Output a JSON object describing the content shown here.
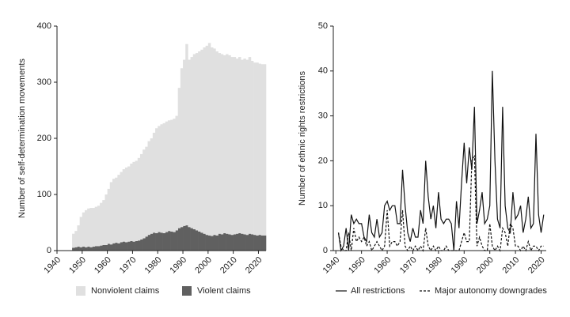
{
  "chart_data": [
    {
      "type": "bar",
      "stacked": true,
      "y_label": "Number of self-determination movements",
      "x": [
        1946,
        1947,
        1948,
        1949,
        1950,
        1951,
        1952,
        1953,
        1954,
        1955,
        1956,
        1957,
        1958,
        1959,
        1960,
        1961,
        1962,
        1963,
        1964,
        1965,
        1966,
        1967,
        1968,
        1969,
        1970,
        1971,
        1972,
        1973,
        1974,
        1975,
        1976,
        1977,
        1978,
        1979,
        1980,
        1981,
        1982,
        1983,
        1984,
        1985,
        1986,
        1987,
        1988,
        1989,
        1990,
        1991,
        1992,
        1993,
        1994,
        1995,
        1996,
        1997,
        1998,
        1999,
        2000,
        2001,
        2002,
        2003,
        2004,
        2005,
        2006,
        2007,
        2008,
        2009,
        2010,
        2011,
        2012,
        2013,
        2014,
        2015,
        2016,
        2017,
        2018,
        2019,
        2020,
        2021,
        2022
      ],
      "series": [
        {
          "name": "Nonviolent claims",
          "color": "#e0e0e0",
          "values": [
            25,
            29,
            38,
            54,
            61,
            66,
            68,
            70,
            69,
            70,
            72,
            76,
            80,
            90,
            98,
            111,
            115,
            116,
            122,
            125,
            129,
            133,
            134,
            138,
            142,
            143,
            147,
            152,
            158,
            160,
            167,
            170,
            178,
            187,
            189,
            193,
            196,
            197,
            197,
            199,
            202,
            204,
            250,
            283,
            296,
            323,
            298,
            305,
            312,
            316,
            321,
            326,
            332,
            337,
            343,
            336,
            332,
            328,
            322,
            321,
            317,
            320,
            319,
            317,
            316,
            312,
            314,
            310,
            313,
            312,
            315,
            309,
            307,
            308,
            305,
            305,
            305
          ]
        },
        {
          "name": "Violent claims",
          "color": "#606060",
          "values": [
            5,
            6,
            7,
            6,
            7,
            6,
            7,
            6,
            7,
            8,
            8,
            9,
            10,
            10,
            12,
            11,
            13,
            14,
            13,
            15,
            16,
            15,
            16,
            17,
            16,
            17,
            18,
            20,
            22,
            25,
            28,
            30,
            32,
            31,
            33,
            32,
            31,
            33,
            35,
            34,
            33,
            36,
            40,
            42,
            44,
            45,
            42,
            40,
            38,
            36,
            34,
            32,
            30,
            28,
            27,
            26,
            28,
            27,
            30,
            29,
            31,
            30,
            29,
            28,
            29,
            30,
            31,
            30,
            29,
            28,
            30,
            29,
            28,
            27,
            28,
            27,
            27
          ]
        }
      ],
      "xlim": [
        1940,
        2023
      ],
      "xticks": [
        1940,
        1950,
        1960,
        1970,
        1980,
        1990,
        2000,
        2010,
        2020
      ],
      "ylim": [
        0,
        400
      ],
      "yticks": [
        0,
        100,
        200,
        300,
        400
      ],
      "legend": "bottom"
    },
    {
      "type": "line",
      "y_label": "Number of ethnic rights restrictions",
      "x": [
        1941,
        1942,
        1943,
        1944,
        1945,
        1946,
        1947,
        1948,
        1949,
        1950,
        1951,
        1952,
        1953,
        1954,
        1955,
        1956,
        1957,
        1958,
        1959,
        1960,
        1961,
        1962,
        1963,
        1964,
        1965,
        1966,
        1967,
        1968,
        1969,
        1970,
        1971,
        1972,
        1973,
        1974,
        1975,
        1976,
        1977,
        1978,
        1979,
        1980,
        1981,
        1982,
        1983,
        1984,
        1985,
        1986,
        1987,
        1988,
        1989,
        1990,
        1991,
        1992,
        1993,
        1994,
        1995,
        1996,
        1997,
        1998,
        1999,
        2000,
        2001,
        2002,
        2003,
        2004,
        2005,
        2006,
        2007,
        2008,
        2009,
        2010,
        2011,
        2012,
        2013,
        2014,
        2015,
        2016,
        2017,
        2018,
        2019,
        2020,
        2021
      ],
      "series": [
        {
          "name": "All restrictions",
          "color": "#111111",
          "dash": "solid",
          "values": [
            4,
            0,
            1,
            5,
            0,
            8,
            6,
            7,
            6,
            6,
            3,
            2,
            8,
            4,
            3,
            7,
            3,
            4,
            10,
            11,
            9,
            10,
            10,
            6,
            6,
            18,
            10,
            4,
            2,
            5,
            3,
            3,
            9,
            6,
            20,
            12,
            7,
            10,
            5,
            13,
            7,
            6,
            7,
            7,
            6,
            0,
            11,
            5,
            15,
            24,
            15,
            23,
            18,
            32,
            6,
            9,
            13,
            6,
            7,
            10,
            40,
            20,
            7,
            5,
            32,
            10,
            5,
            4,
            13,
            7,
            8,
            10,
            4,
            7,
            12,
            5,
            6,
            26,
            8,
            4,
            8
          ]
        },
        {
          "name": "Major autonomy downgrades",
          "color": "#111111",
          "dash": "dashed",
          "values": [
            4,
            1,
            0,
            0,
            4,
            0,
            5,
            2,
            3,
            2,
            3,
            1,
            2,
            0,
            1,
            2,
            1,
            0,
            1,
            9,
            1,
            2,
            2,
            1,
            2,
            9,
            1,
            0,
            1,
            0,
            1,
            0,
            1,
            0,
            5,
            1,
            0,
            1,
            0,
            1,
            0,
            0,
            1,
            0,
            0,
            0,
            0,
            0,
            2,
            4,
            2,
            2,
            20,
            21,
            1,
            3,
            1,
            0,
            0,
            6,
            1,
            0,
            1,
            0,
            5,
            4,
            1,
            6,
            5,
            1,
            1,
            0,
            1,
            0,
            2,
            0,
            1,
            1,
            0,
            1,
            1
          ]
        }
      ],
      "xlim": [
        1939,
        2022
      ],
      "xticks": [
        1940,
        1950,
        1960,
        1970,
        1980,
        1990,
        2000,
        2010,
        2020
      ],
      "ylim": [
        0,
        50
      ],
      "yticks": [
        0,
        10,
        20,
        30,
        40,
        50
      ],
      "legend": "bottom"
    }
  ]
}
